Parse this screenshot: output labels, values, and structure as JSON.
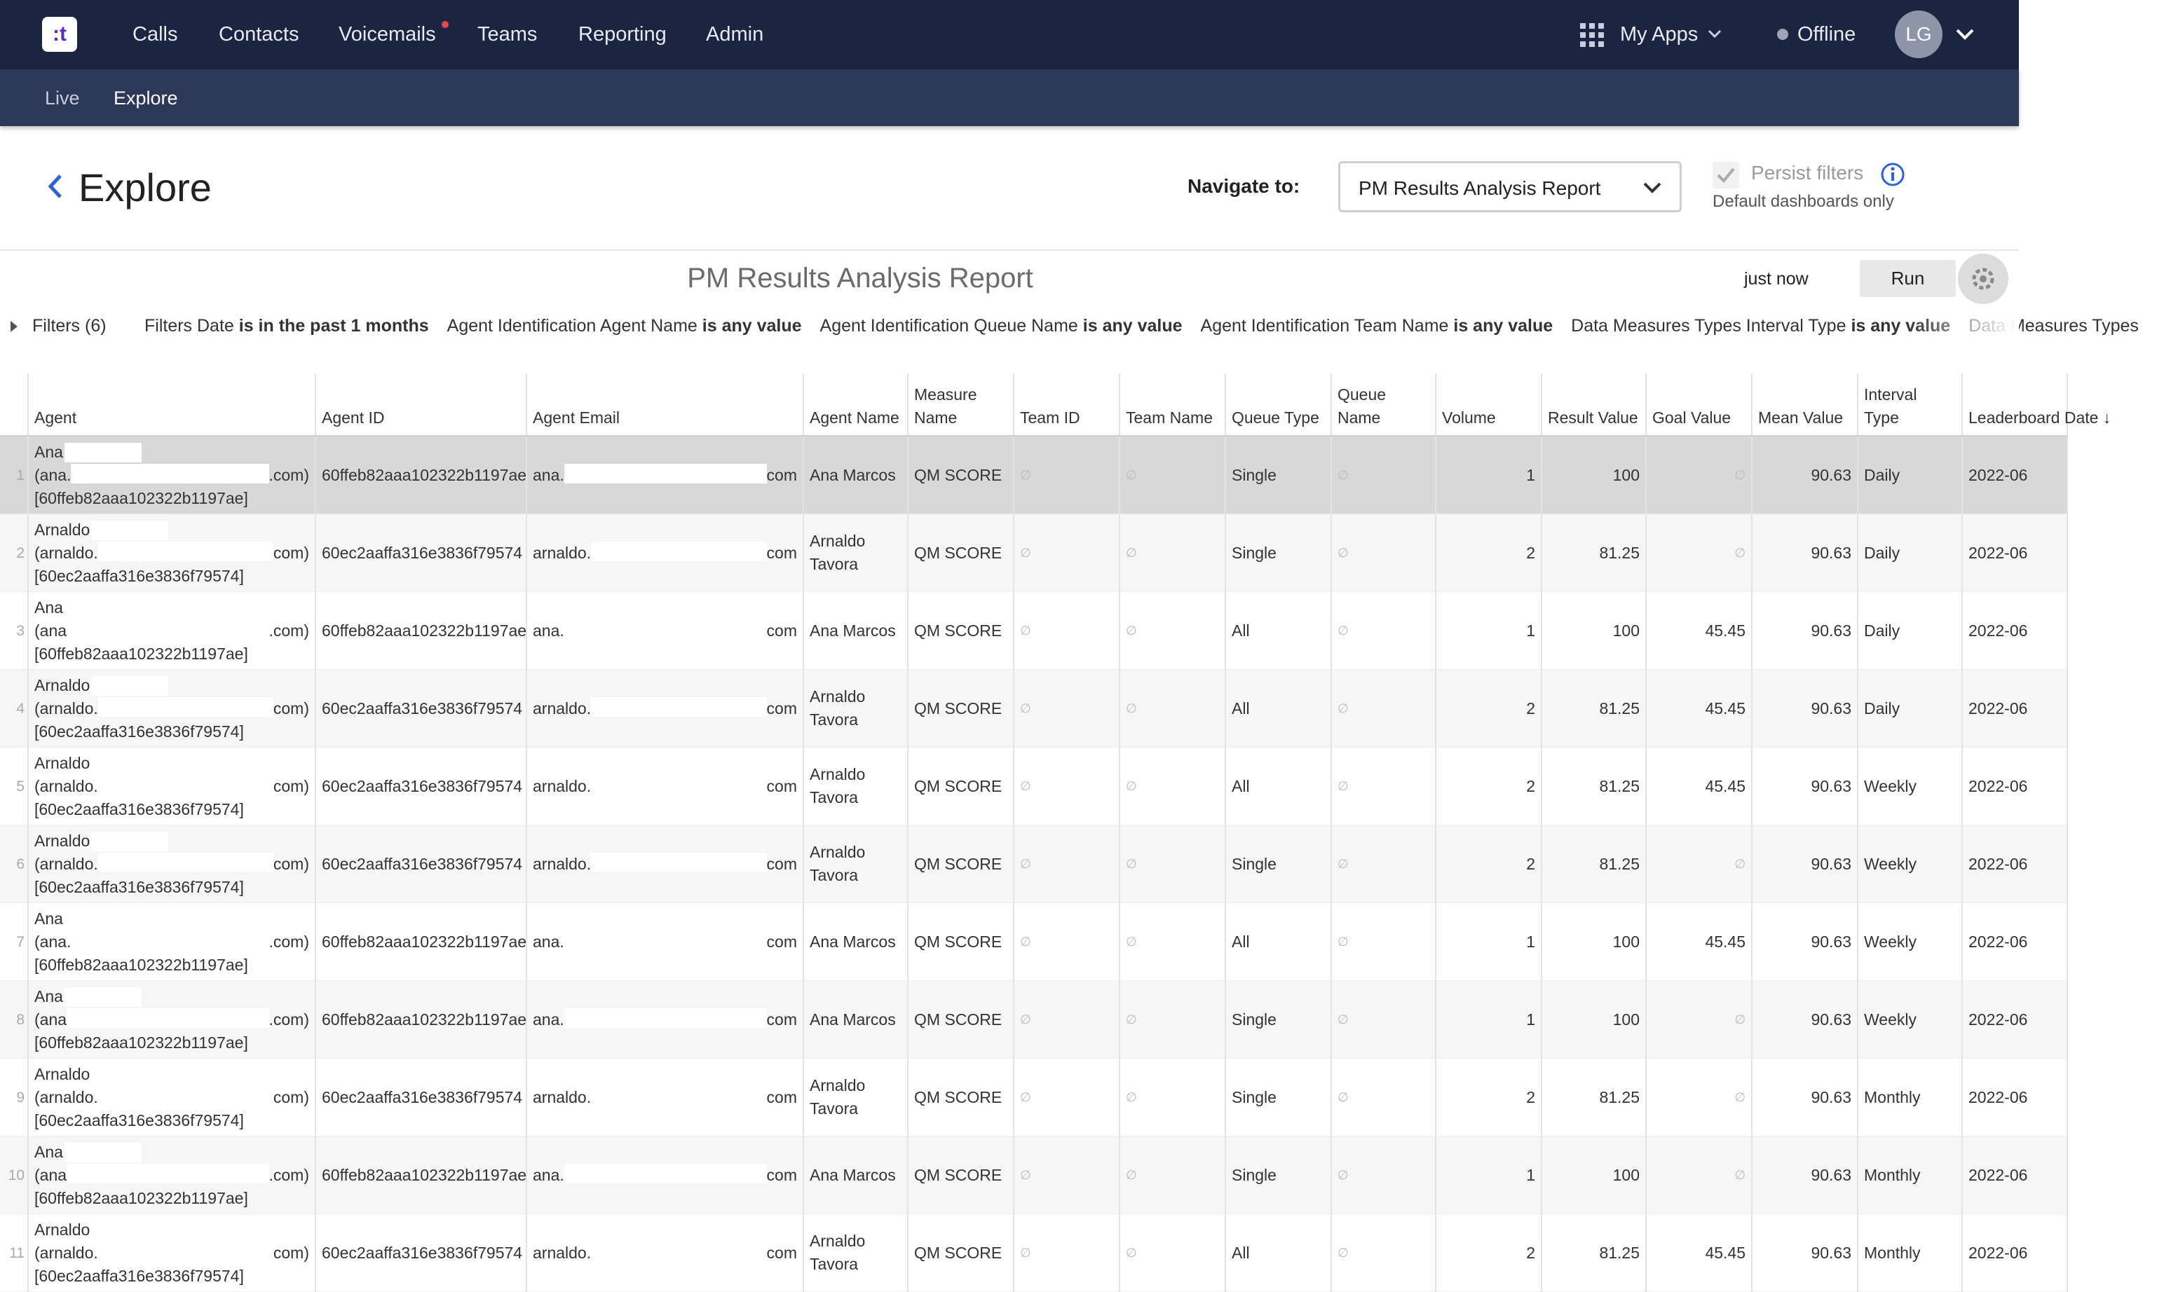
{
  "nav": {
    "logo": ":t",
    "items": [
      "Calls",
      "Contacts",
      "Voicemails",
      "Teams",
      "Reporting",
      "Admin"
    ],
    "apps": "My Apps",
    "status": "Offline",
    "avatar": "LG"
  },
  "subnav": {
    "items": [
      "Live",
      "Explore"
    ]
  },
  "header": {
    "title": "Explore",
    "navigate_label": "Navigate to:",
    "navigate_value": "PM Results Analysis Report",
    "persist": "Persist filters",
    "persist_note": "Default dashboards only"
  },
  "report": {
    "title": "PM Results Analysis Report",
    "updated": "just now",
    "run": "Run"
  },
  "filters": {
    "label": "Filters (6)",
    "items": [
      {
        "field": "Filters Date",
        "op": "is in the past 1 months"
      },
      {
        "field": "Agent Identification Agent Name",
        "op": "is any value"
      },
      {
        "field": "Agent Identification Queue Name",
        "op": "is any value"
      },
      {
        "field": "Agent Identification Team Name",
        "op": "is any value"
      },
      {
        "field": "Data Measures Types Interval Type",
        "op": "is any value"
      },
      {
        "field": "Data Measures Types",
        "op": ""
      }
    ]
  },
  "table": {
    "columns": [
      "Agent",
      "Agent ID",
      "Agent Email",
      "Agent Name",
      "Measure Name",
      "Team ID",
      "Team Name",
      "Queue Type",
      "Queue Name",
      "Volume",
      "Result Value",
      "Goal Value",
      "Mean Value",
      "Interval Type",
      "Leaderboard Date ↓"
    ],
    "rows": [
      {
        "num": 1,
        "agent_name": "Ana",
        "agent_email_start": "(ana.",
        "agent_email_end": ".com)",
        "agent_id_label": "[60ffeb82aaa102322b1197ae]",
        "agent_id": "60ffeb82aaa102322b1197ae",
        "email_start": "ana.",
        "email_end": "com",
        "full_name": "Ana Marcos",
        "measure": "QM SCORE",
        "team_id": "∅",
        "team_name": "∅",
        "queue_type": "Single",
        "queue_name": "∅",
        "volume": 1,
        "result": 100,
        "goal": "∅",
        "mean": 90.63,
        "interval": "Daily",
        "date": "2022-06"
      },
      {
        "num": 2,
        "agent_name": "Arnaldo",
        "agent_email_start": "(arnaldo.",
        "agent_email_end": "com)",
        "agent_id_label": "[60ec2aaffa316e3836f79574]",
        "agent_id": "60ec2aaffa316e3836f79574",
        "email_start": "arnaldo.",
        "email_end": "com",
        "full_name": "Arnaldo Tavora",
        "measure": "QM SCORE",
        "team_id": "∅",
        "team_name": "∅",
        "queue_type": "Single",
        "queue_name": "∅",
        "volume": 2,
        "result": 81.25,
        "goal": "∅",
        "mean": 90.63,
        "interval": "Daily",
        "date": "2022-06"
      },
      {
        "num": 3,
        "agent_name": "Ana",
        "agent_email_start": "(ana",
        "agent_email_end": ".com)",
        "agent_id_label": "[60ffeb82aaa102322b1197ae]",
        "agent_id": "60ffeb82aaa102322b1197ae",
        "email_start": "ana.",
        "email_end": "com",
        "full_name": "Ana Marcos",
        "measure": "QM SCORE",
        "team_id": "∅",
        "team_name": "∅",
        "queue_type": "All",
        "queue_name": "∅",
        "volume": 1,
        "result": 100,
        "goal": 45.45,
        "mean": 90.63,
        "interval": "Daily",
        "date": "2022-06"
      },
      {
        "num": 4,
        "agent_name": "Arnaldo",
        "agent_email_start": "(arnaldo.",
        "agent_email_end": "com)",
        "agent_id_label": "[60ec2aaffa316e3836f79574]",
        "agent_id": "60ec2aaffa316e3836f79574",
        "email_start": "arnaldo.",
        "email_end": "com",
        "full_name": "Arnaldo Tavora",
        "measure": "QM SCORE",
        "team_id": "∅",
        "team_name": "∅",
        "queue_type": "All",
        "queue_name": "∅",
        "volume": 2,
        "result": 81.25,
        "goal": 45.45,
        "mean": 90.63,
        "interval": "Daily",
        "date": "2022-06"
      },
      {
        "num": 5,
        "agent_name": "Arnaldo",
        "agent_email_start": "(arnaldo.",
        "agent_email_end": "com)",
        "agent_id_label": "[60ec2aaffa316e3836f79574]",
        "agent_id": "60ec2aaffa316e3836f79574",
        "email_start": "arnaldo.",
        "email_end": "com",
        "full_name": "Arnaldo Tavora",
        "measure": "QM SCORE",
        "team_id": "∅",
        "team_name": "∅",
        "queue_type": "All",
        "queue_name": "∅",
        "volume": 2,
        "result": 81.25,
        "goal": 45.45,
        "mean": 90.63,
        "interval": "Weekly",
        "date": "2022-06"
      },
      {
        "num": 6,
        "agent_name": "Arnaldo",
        "agent_email_start": "(arnaldo.",
        "agent_email_end": "com)",
        "agent_id_label": "[60ec2aaffa316e3836f79574]",
        "agent_id": "60ec2aaffa316e3836f79574",
        "email_start": "arnaldo.",
        "email_end": "com",
        "full_name": "Arnaldo Tavora",
        "measure": "QM SCORE",
        "team_id": "∅",
        "team_name": "∅",
        "queue_type": "Single",
        "queue_name": "∅",
        "volume": 2,
        "result": 81.25,
        "goal": "∅",
        "mean": 90.63,
        "interval": "Weekly",
        "date": "2022-06"
      },
      {
        "num": 7,
        "agent_name": "Ana",
        "agent_email_start": "(ana.",
        "agent_email_end": ".com)",
        "agent_id_label": "[60ffeb82aaa102322b1197ae]",
        "agent_id": "60ffeb82aaa102322b1197ae",
        "email_start": "ana.",
        "email_end": "com",
        "full_name": "Ana Marcos",
        "measure": "QM SCORE",
        "team_id": "∅",
        "team_name": "∅",
        "queue_type": "All",
        "queue_name": "∅",
        "volume": 1,
        "result": 100,
        "goal": 45.45,
        "mean": 90.63,
        "interval": "Weekly",
        "date": "2022-06"
      },
      {
        "num": 8,
        "agent_name": "Ana",
        "agent_email_start": "(ana",
        "agent_email_end": ".com)",
        "agent_id_label": "[60ffeb82aaa102322b1197ae]",
        "agent_id": "60ffeb82aaa102322b1197ae",
        "email_start": "ana.",
        "email_end": "com",
        "full_name": "Ana Marcos",
        "measure": "QM SCORE",
        "team_id": "∅",
        "team_name": "∅",
        "queue_type": "Single",
        "queue_name": "∅",
        "volume": 1,
        "result": 100,
        "goal": "∅",
        "mean": 90.63,
        "interval": "Weekly",
        "date": "2022-06"
      },
      {
        "num": 9,
        "agent_name": "Arnaldo",
        "agent_email_start": "(arnaldo.",
        "agent_email_end": "com)",
        "agent_id_label": "[60ec2aaffa316e3836f79574]",
        "agent_id": "60ec2aaffa316e3836f79574",
        "email_start": "arnaldo.",
        "email_end": "com",
        "full_name": "Arnaldo Tavora",
        "measure": "QM SCORE",
        "team_id": "∅",
        "team_name": "∅",
        "queue_type": "Single",
        "queue_name": "∅",
        "volume": 2,
        "result": 81.25,
        "goal": "∅",
        "mean": 90.63,
        "interval": "Monthly",
        "date": "2022-06"
      },
      {
        "num": 10,
        "agent_name": "Ana",
        "agent_email_start": "(ana",
        "agent_email_end": ".com)",
        "agent_id_label": "[60ffeb82aaa102322b1197ae]",
        "agent_id": "60ffeb82aaa102322b1197ae",
        "email_start": "ana.",
        "email_end": "com",
        "full_name": "Ana Marcos",
        "measure": "QM SCORE",
        "team_id": "∅",
        "team_name": "∅",
        "queue_type": "Single",
        "queue_name": "∅",
        "volume": 1,
        "result": 100,
        "goal": "∅",
        "mean": 90.63,
        "interval": "Monthly",
        "date": "2022-06"
      },
      {
        "num": 11,
        "agent_name": "Arnaldo",
        "agent_email_start": "(arnaldo.",
        "agent_email_end": "com)",
        "agent_id_label": "[60ec2aaffa316e3836f79574]",
        "agent_id": "60ec2aaffa316e3836f79574",
        "email_start": "arnaldo.",
        "email_end": "com",
        "full_name": "Arnaldo Tavora",
        "measure": "QM SCORE",
        "team_id": "∅",
        "team_name": "∅",
        "queue_type": "All",
        "queue_name": "∅",
        "volume": 2,
        "result": 81.25,
        "goal": 45.45,
        "mean": 90.63,
        "interval": "Monthly",
        "date": "2022-06"
      }
    ]
  }
}
